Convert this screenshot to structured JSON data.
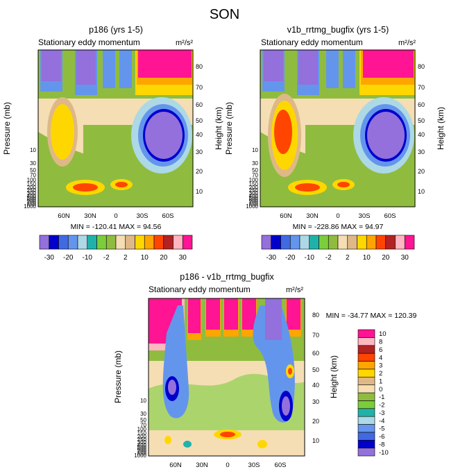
{
  "chart_data": {
    "type": "heatmap",
    "title": "SON",
    "panels": [
      {
        "id": "p186",
        "title": "p186 (yrs 1-5)",
        "left_label": "Stationary eddy momentum",
        "units": "m²/s²",
        "ylabel_left": "Pressure (mb)",
        "ylabel_right": "Height (km)",
        "x_ticks": [
          "60N",
          "30N",
          "0",
          "30S",
          "60S"
        ],
        "y_ticks_left": [
          "10",
          "30",
          "50",
          "70",
          "100",
          "150",
          "200",
          "250",
          "300",
          "400",
          "500",
          "600",
          "700",
          "850",
          "1000"
        ],
        "y_ticks_right": [
          "10",
          "20",
          "30",
          "40",
          "50",
          "60",
          "70",
          "80"
        ],
        "min": -120.41,
        "max": 94.56,
        "minmax_text": "MIN = -120.41   MAX = 94.56"
      },
      {
        "id": "v1b",
        "title": "v1b_rrtmg_bugfix (yrs 1-5)",
        "left_label": "Stationary eddy momentum",
        "units": "m²/s²",
        "ylabel_left": "Pressure (mb)",
        "ylabel_right": "Height (km)",
        "x_ticks": [
          "60N",
          "30N",
          "0",
          "30S",
          "60S"
        ],
        "y_ticks_left": [
          "10",
          "30",
          "50",
          "70",
          "100",
          "150",
          "200",
          "250",
          "300",
          "400",
          "500",
          "600",
          "700",
          "850",
          "1000"
        ],
        "y_ticks_right": [
          "10",
          "20",
          "30",
          "40",
          "50",
          "60",
          "70",
          "80"
        ],
        "min": -228.86,
        "max": 94.97,
        "minmax_text": "MIN = -228.86   MAX = 94.97"
      },
      {
        "id": "diff",
        "title": "p186 - v1b_rrtmg_bugfix",
        "left_label": "Stationary eddy momentum",
        "units": "m²/s²",
        "ylabel_left": "Pressure (mb)",
        "ylabel_right": "Height (km)",
        "x_ticks": [
          "60N",
          "30N",
          "0",
          "30S",
          "60S"
        ],
        "y_ticks_left": [
          "10",
          "30",
          "50",
          "70",
          "100",
          "150",
          "200",
          "250",
          "300",
          "400",
          "500",
          "600",
          "700",
          "850",
          "1000"
        ],
        "y_ticks_right": [
          "10",
          "20",
          "30",
          "40",
          "50",
          "60",
          "70",
          "80"
        ],
        "min": -34.77,
        "max": 120.39,
        "minmax_text": "MIN = -34.77   MAX = 120.39"
      }
    ],
    "colorbar_main": {
      "colors": [
        "#9370db",
        "#0000cd",
        "#4169e1",
        "#6495ed",
        "#add8e6",
        "#20b2aa",
        "#7ccd3c",
        "#8fbc3f",
        "#f5deb3",
        "#deb887",
        "#ffd700",
        "#ffa500",
        "#ff4500",
        "#b22222",
        "#ffb6c1",
        "#ff1493"
      ],
      "labels": [
        "-30",
        "-20",
        "-10",
        "-2",
        "2",
        "10",
        "20",
        "30"
      ]
    },
    "colorbar_diff": {
      "colors": [
        "#9370db",
        "#0000cd",
        "#4169e1",
        "#6495ed",
        "#add8e6",
        "#20b2aa",
        "#7ccd3c",
        "#8fbc3f",
        "#f5deb3",
        "#deb887",
        "#ffd700",
        "#ffa500",
        "#ff4500",
        "#b22222",
        "#ffb6c1",
        "#ff1493"
      ],
      "labels": [
        "-10",
        "-8",
        "-6",
        "-5",
        "-4",
        "-3",
        "-2",
        "-1",
        "0",
        "1",
        "2",
        "3",
        "4",
        "6",
        "8",
        "10"
      ]
    }
  }
}
